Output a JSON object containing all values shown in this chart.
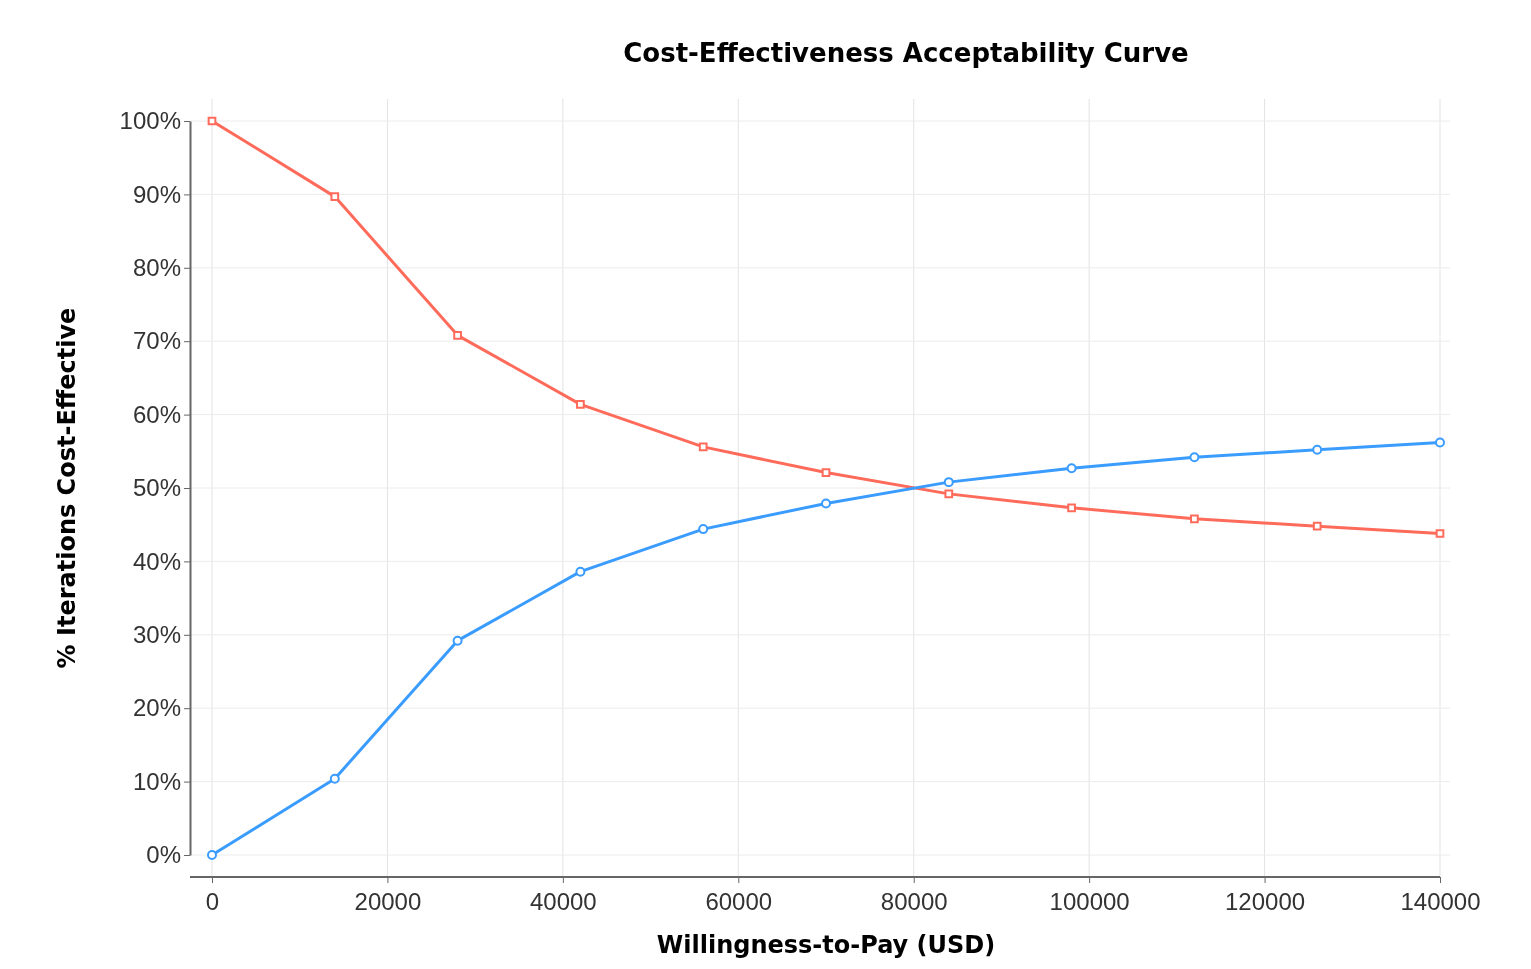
{
  "chart_data": {
    "type": "line",
    "title": "Cost-Effectiveness Acceptability Curve",
    "xlabel": "Willingness-to-Pay (USD)",
    "ylabel": "% Iterations Cost-Effective",
    "x": [
      0,
      14000,
      28000,
      42000,
      56000,
      70000,
      84000,
      98000,
      112000,
      126000,
      140000
    ],
    "series": [
      {
        "color": "#ff6b5b",
        "marker": "square",
        "values": [
          100,
          89.7,
          70.8,
          61.4,
          55.6,
          52.1,
          49.2,
          47.3,
          45.8,
          44.8,
          43.8
        ]
      },
      {
        "color": "#3a9cff",
        "marker": "circle",
        "values": [
          0,
          10.4,
          29.2,
          38.6,
          44.4,
          47.9,
          50.8,
          52.7,
          54.2,
          55.2,
          56.2
        ]
      }
    ],
    "xlim": [
      0,
      140000
    ],
    "xticks": [
      0,
      20000,
      40000,
      60000,
      80000,
      100000,
      120000,
      140000
    ],
    "ylim": [
      0,
      100
    ],
    "yticks": [
      {
        "value": 0,
        "label": "0%"
      },
      {
        "value": 10,
        "label": "10%"
      },
      {
        "value": 20,
        "label": "20%"
      },
      {
        "value": 30,
        "label": "30%"
      },
      {
        "value": 40,
        "label": "40%"
      },
      {
        "value": 50,
        "label": "50%"
      },
      {
        "value": 60,
        "label": "60%"
      },
      {
        "value": 70,
        "label": "70%"
      },
      {
        "value": 80,
        "label": "80%"
      },
      {
        "value": 90,
        "label": "90%"
      },
      {
        "value": 100,
        "label": "100%"
      }
    ],
    "grid": true,
    "line_style": "solid"
  }
}
